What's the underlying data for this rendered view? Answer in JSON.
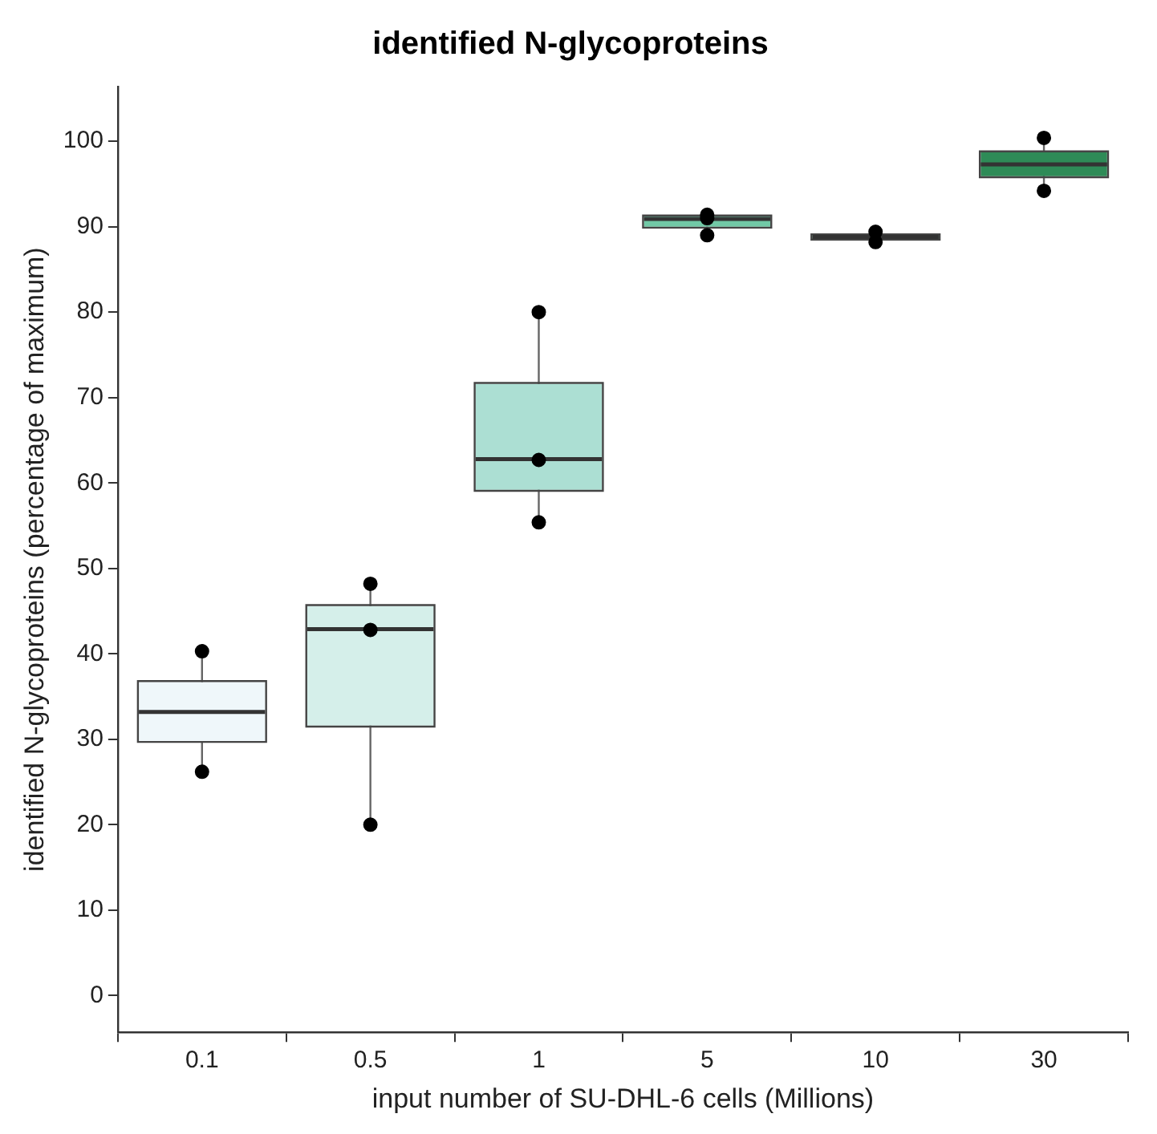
{
  "chart_data": {
    "type": "box",
    "title": "identified N-glycoproteins",
    "xlabel": "input number of SU-DHL-6 cells (Millions)",
    "ylabel": "identified N-glycoproteins (percentage of maximum)",
    "categories": [
      "0.1",
      "0.5",
      "1",
      "5",
      "10",
      "30"
    ],
    "boxes": [
      {
        "low": 26.2,
        "q1": 29.8,
        "median": 33.2,
        "q3": 36.7,
        "high": 40.3
      },
      {
        "low": 20,
        "q1": 31.6,
        "median": 42.9,
        "q3": 45.6,
        "high": 48.2
      },
      {
        "low": 55.6,
        "q1": 59.2,
        "median": 62.8,
        "q3": 71.6,
        "high": 80
      },
      {
        "low": 89.5,
        "q1": 90,
        "median": 90.9,
        "q3": 91.2,
        "high": 91.4
      },
      {
        "low": 88.2,
        "q1": 88.6,
        "median": 88.8,
        "q3": 89,
        "high": 89.4
      },
      {
        "low": 94.6,
        "q1": 95.9,
        "median": 97.3,
        "q3": 98.7,
        "high": 100.2
      }
    ],
    "colors": [
      "#eff7fa",
      "#d5efea",
      "#acdfd3",
      "#71c9a6",
      "#46a86c",
      "#2e8b57"
    ],
    "series": [
      {
        "type": "scatter",
        "color": "#000000",
        "marker": "circle",
        "x": [
          "0.1",
          "0.1",
          "0.5",
          "0.5",
          "0.5",
          "1",
          "1",
          "1",
          "5",
          "5",
          "5",
          "10",
          "10",
          "30",
          "30"
        ],
        "values": [
          26.2,
          40.3,
          42.8,
          20,
          48.2,
          55.4,
          80,
          62.7,
          91,
          91.4,
          89,
          88.2,
          89.4,
          94.2,
          100.4
        ]
      }
    ],
    "ylim": [
      -4.3,
      106.4
    ],
    "yticks": [
      0,
      10,
      20,
      30,
      40,
      50,
      60,
      70,
      80,
      90,
      100
    ],
    "grid": false
  }
}
